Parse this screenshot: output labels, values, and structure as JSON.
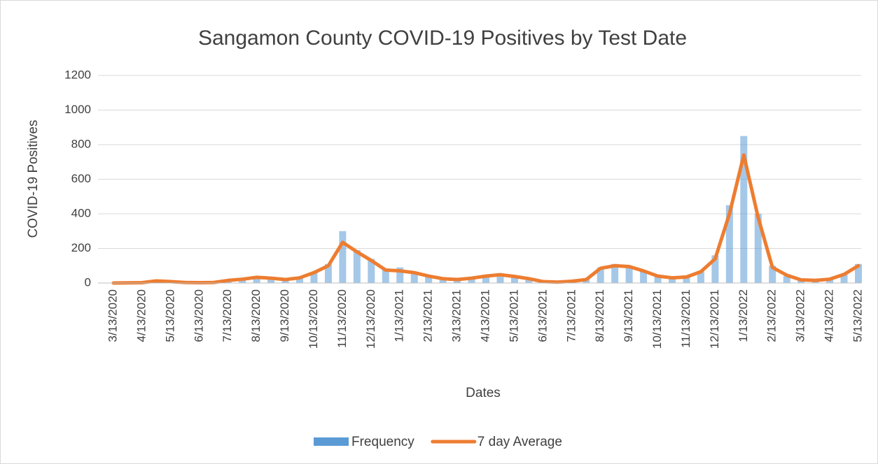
{
  "chart_data": {
    "type": "combo",
    "title": "Sangamon County COVID-19 Positives by Test Date",
    "x_label": "Dates",
    "y_label": "COVID-19 Positives",
    "categories": [
      "3/13/2020",
      null,
      "4/13/2020",
      null,
      "5/13/2020",
      null,
      "6/13/2020",
      null,
      "7/13/2020",
      null,
      "8/13/2020",
      null,
      "9/13/2020",
      null,
      "10/13/2020",
      null,
      "11/13/2020",
      null,
      "12/13/2020",
      null,
      "1/13/2021",
      null,
      "2/13/2021",
      null,
      "3/13/2021",
      null,
      "4/13/2021",
      null,
      "5/13/2021",
      null,
      "6/13/2021",
      null,
      "7/13/2021",
      null,
      "8/13/2021",
      null,
      "9/13/2021",
      null,
      "10/13/2021",
      null,
      "11/13/2021",
      null,
      "12/13/2021",
      null,
      "1/13/2022",
      null,
      "2/13/2022",
      null,
      "3/13/2022",
      null,
      "4/13/2022",
      null,
      "5/13/2022"
    ],
    "series": [
      {
        "name": "Frequency",
        "kind": "bar",
        "color": "#5b9bd5",
        "values": [
          0,
          1,
          2,
          12,
          8,
          3,
          2,
          3,
          15,
          22,
          33,
          28,
          20,
          30,
          60,
          110,
          300,
          190,
          140,
          80,
          90,
          55,
          40,
          25,
          20,
          30,
          45,
          55,
          40,
          25,
          8,
          5,
          12,
          25,
          90,
          110,
          100,
          70,
          40,
          30,
          40,
          70,
          160,
          450,
          850,
          400,
          100,
          40,
          15,
          15,
          25,
          50,
          110
        ]
      },
      {
        "name": "7 day Average",
        "kind": "line",
        "color": "#ed7d31",
        "values": [
          0,
          1,
          2,
          12,
          8,
          3,
          2,
          3,
          15,
          22,
          33,
          28,
          20,
          30,
          60,
          100,
          235,
          180,
          130,
          75,
          70,
          60,
          40,
          25,
          20,
          28,
          40,
          48,
          38,
          25,
          8,
          5,
          10,
          20,
          85,
          100,
          95,
          70,
          40,
          30,
          35,
          65,
          140,
          400,
          740,
          380,
          90,
          45,
          18,
          15,
          22,
          50,
          100
        ]
      }
    ],
    "ylim": [
      0,
      1200
    ],
    "yticks": [
      0,
      200,
      400,
      600,
      800,
      1000,
      1200
    ],
    "grid": true,
    "legend": "bottom"
  }
}
